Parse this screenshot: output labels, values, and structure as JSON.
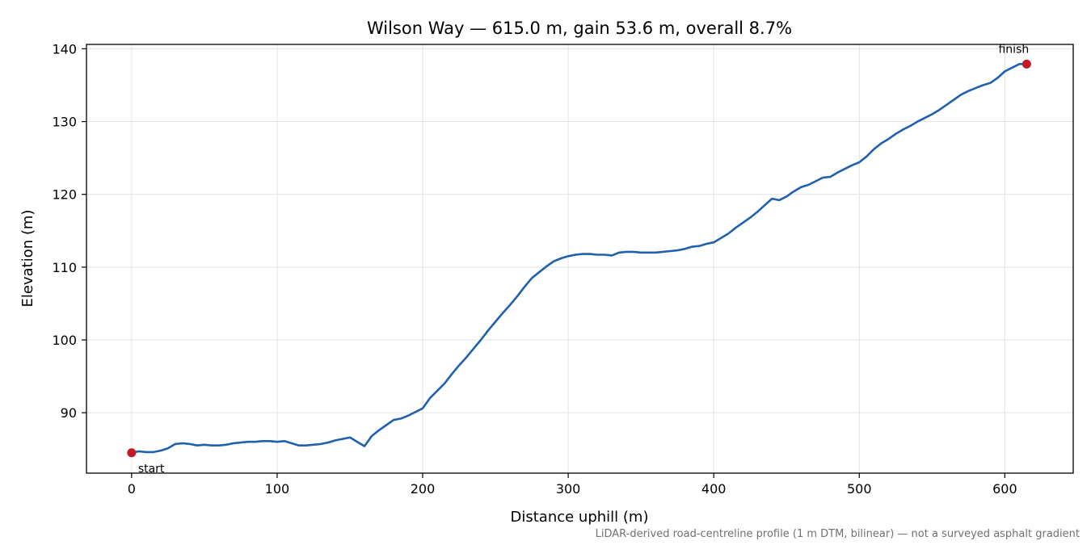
{
  "chart_data": {
    "type": "line",
    "title": "Wilson Way — 615.0 m, gain 53.6 m, overall 8.7%",
    "xlabel": "Distance uphill (m)",
    "ylabel": "Elevation (m)",
    "xlim": [
      -31,
      647
    ],
    "ylim": [
      81.7,
      140.6
    ],
    "xticks": [
      0,
      100,
      200,
      300,
      400,
      500,
      600
    ],
    "yticks": [
      90,
      100,
      110,
      120,
      130,
      140
    ],
    "grid": true,
    "line_color": "#2060ac",
    "marker_color": "#c41a28",
    "series": [
      {
        "x": [
          0,
          5,
          10,
          15,
          20,
          25,
          30,
          35,
          40,
          45,
          50,
          55,
          60,
          65,
          70,
          75,
          80,
          85,
          90,
          95,
          100,
          105,
          110,
          115,
          120,
          125,
          130,
          135,
          140,
          145,
          150,
          155,
          160,
          165,
          170,
          175,
          180,
          185,
          190,
          195,
          200,
          205,
          210,
          215,
          220,
          225,
          230,
          235,
          240,
          245,
          250,
          255,
          260,
          265,
          270,
          275,
          280,
          285,
          290,
          295,
          300,
          305,
          310,
          315,
          320,
          325,
          330,
          335,
          340,
          345,
          350,
          355,
          360,
          365,
          370,
          375,
          380,
          385,
          390,
          395,
          400,
          405,
          410,
          415,
          420,
          425,
          430,
          435,
          440,
          445,
          450,
          455,
          460,
          465,
          470,
          475,
          480,
          485,
          490,
          495,
          500,
          505,
          510,
          515,
          520,
          525,
          530,
          535,
          540,
          545,
          550,
          555,
          560,
          565,
          570,
          575,
          580,
          585,
          590,
          595,
          600,
          605,
          610,
          615
        ],
        "y": [
          84.5,
          84.7,
          84.6,
          84.6,
          84.8,
          85.1,
          85.7,
          85.8,
          85.7,
          85.5,
          85.6,
          85.5,
          85.5,
          85.6,
          85.8,
          85.9,
          86.0,
          86.0,
          86.1,
          86.1,
          86.0,
          86.1,
          85.8,
          85.5,
          85.5,
          85.6,
          85.7,
          85.9,
          86.2,
          86.4,
          86.6,
          86.0,
          85.4,
          86.8,
          87.6,
          88.3,
          89.0,
          89.2,
          89.6,
          90.1,
          90.6,
          92.0,
          93.0,
          94.0,
          95.3,
          96.5,
          97.6,
          98.8,
          100.0,
          101.3,
          102.5,
          103.7,
          104.8,
          106.0,
          107.3,
          108.5,
          109.3,
          110.1,
          110.8,
          111.2,
          111.5,
          111.7,
          111.8,
          111.8,
          111.7,
          111.7,
          111.6,
          112.0,
          112.1,
          112.1,
          112.0,
          112.0,
          112.0,
          112.1,
          112.2,
          112.3,
          112.5,
          112.8,
          112.9,
          113.2,
          113.4,
          114.0,
          114.6,
          115.4,
          116.1,
          116.8,
          117.6,
          118.5,
          119.4,
          119.2,
          119.7,
          120.4,
          121.0,
          121.3,
          121.8,
          122.3,
          122.4,
          123.0,
          123.5,
          124.0,
          124.4,
          125.2,
          126.2,
          127.0,
          127.6,
          128.3,
          128.9,
          129.4,
          130.0,
          130.5,
          131.0,
          131.6,
          132.3,
          133.0,
          133.7,
          134.2,
          134.6,
          135.0,
          135.3,
          136.0,
          136.9,
          137.4,
          137.9,
          137.9
        ]
      }
    ],
    "annotations": [
      {
        "text": "start",
        "x": 0,
        "y": 84.5
      },
      {
        "text": "finish",
        "x": 615,
        "y": 137.9
      }
    ],
    "footnote": "LiDAR-derived road-centreline profile (1 m DTM, bilinear) — not a surveyed asphalt gradient"
  }
}
